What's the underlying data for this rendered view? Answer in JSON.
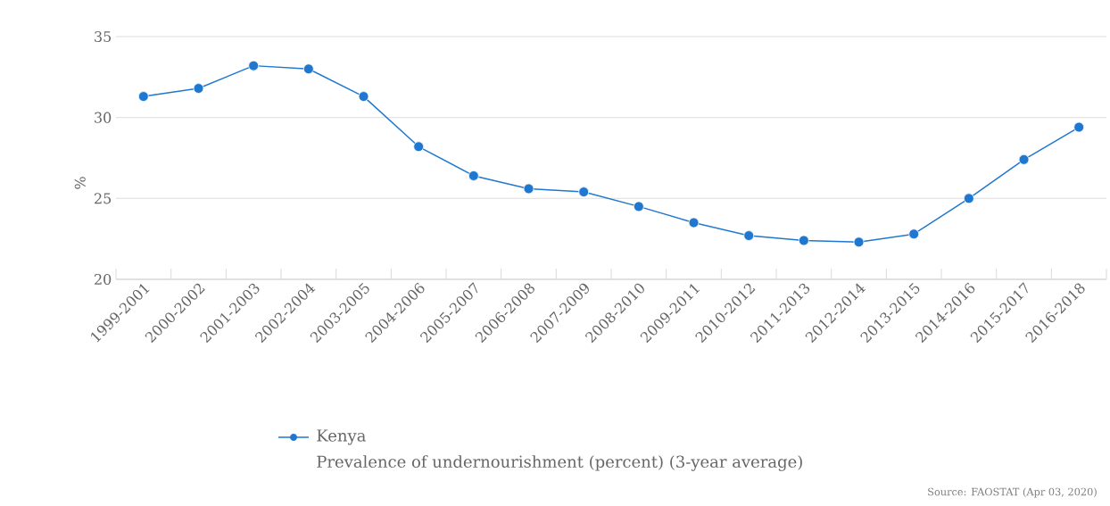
{
  "chart_data": {
    "type": "line",
    "ylabel": "%",
    "categories": [
      "1999-2001",
      "2000-2002",
      "2001-2003",
      "2002-2004",
      "2003-2005",
      "2004-2006",
      "2005-2007",
      "2006-2008",
      "2007-2009",
      "2008-2010",
      "2009-2011",
      "2010-2012",
      "2011-2013",
      "2012-2014",
      "2013-2015",
      "2014-2016",
      "2015-2017",
      "2016-2018"
    ],
    "series": [
      {
        "name": "Kenya",
        "color": "#1f77d0",
        "values": [
          31.3,
          31.8,
          33.2,
          33.0,
          31.3,
          28.2,
          26.4,
          25.6,
          25.4,
          24.5,
          23.5,
          22.7,
          22.4,
          22.3,
          22.8,
          25.0,
          27.4,
          29.4
        ]
      }
    ],
    "ylim": [
      20,
      35
    ],
    "yticks": [
      20,
      25,
      30,
      35
    ],
    "grid": "y",
    "legend": "bottom",
    "marker": "circle",
    "line_style": "solid",
    "annotations": [
      "Prevalence of undernourishment (percent) (3-year average)",
      "Source: FAOSTAT (Apr 03, 2020)"
    ]
  }
}
